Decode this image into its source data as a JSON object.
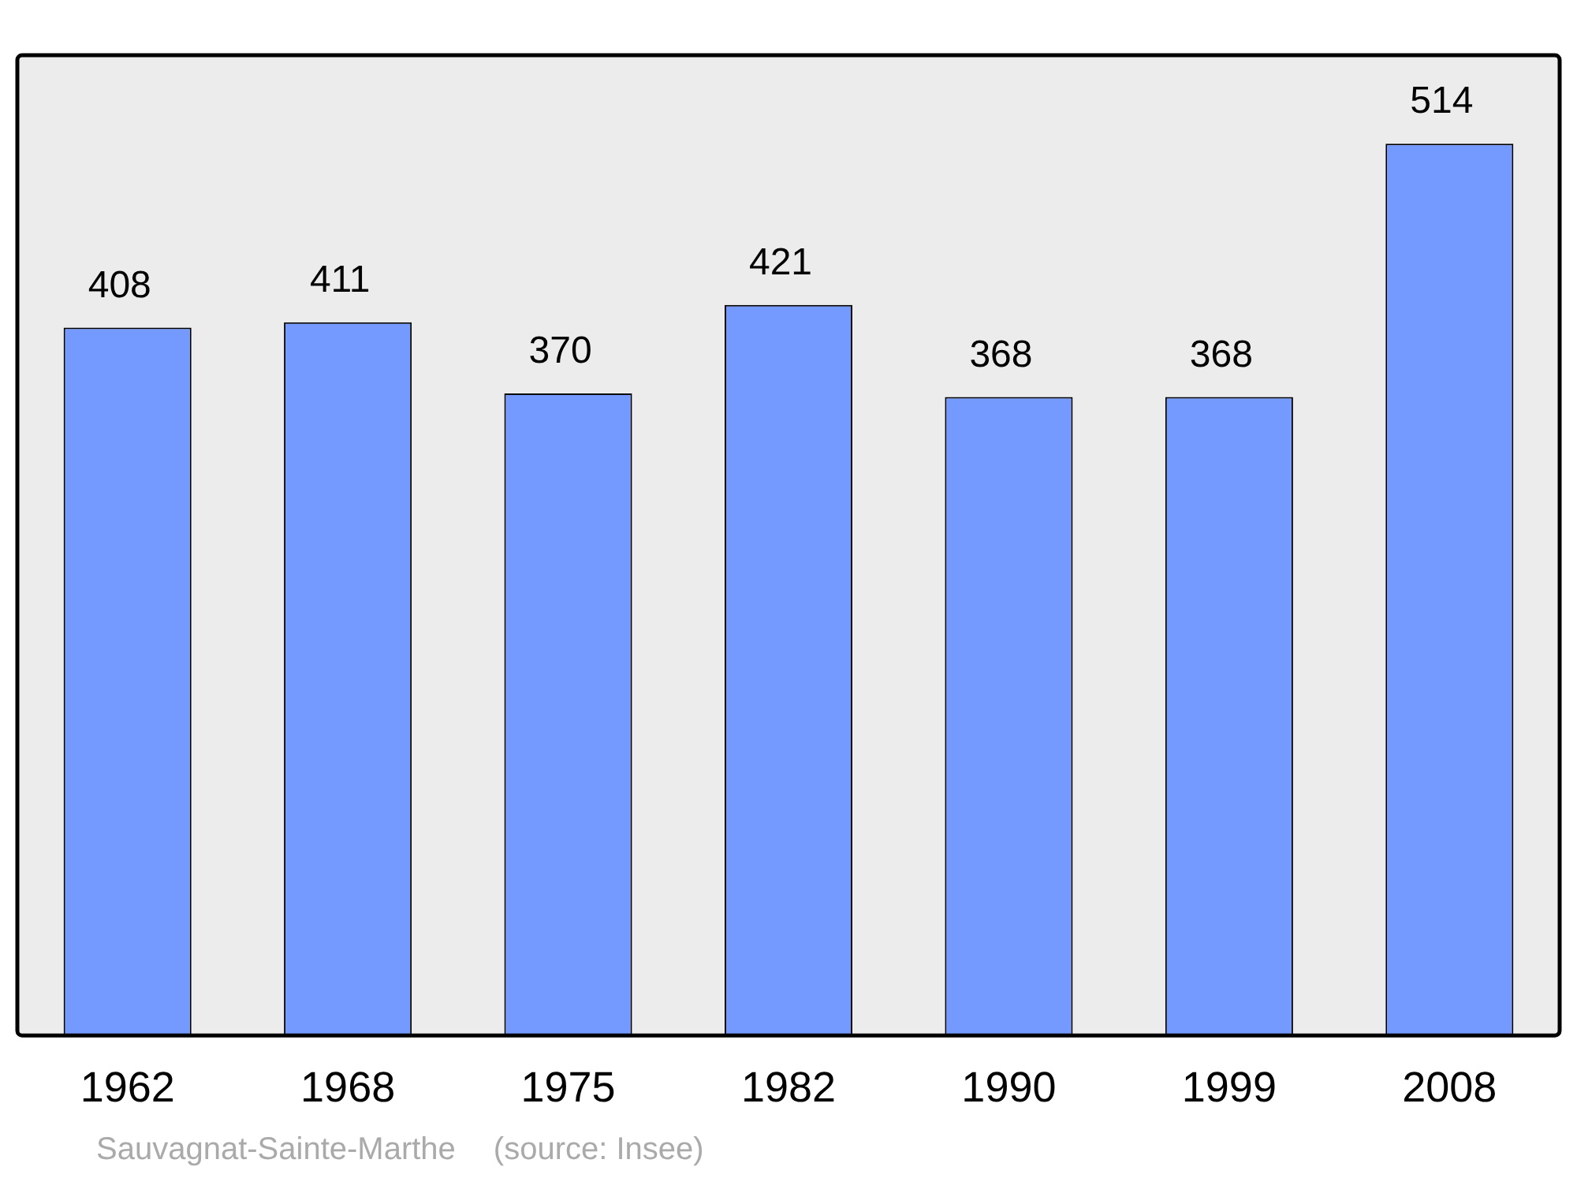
{
  "chart_data": {
    "type": "bar",
    "categories": [
      "1962",
      "1968",
      "1975",
      "1982",
      "1990",
      "1999",
      "2008"
    ],
    "values": [
      408,
      411,
      370,
      421,
      368,
      368,
      514
    ],
    "color": "#7499ff",
    "data_labels": true,
    "legend": false,
    "ylim": [
      0,
      565
    ],
    "annotations": [
      "Sauvagnat-Sainte-Marthe",
      "(source: Insee)"
    ]
  }
}
